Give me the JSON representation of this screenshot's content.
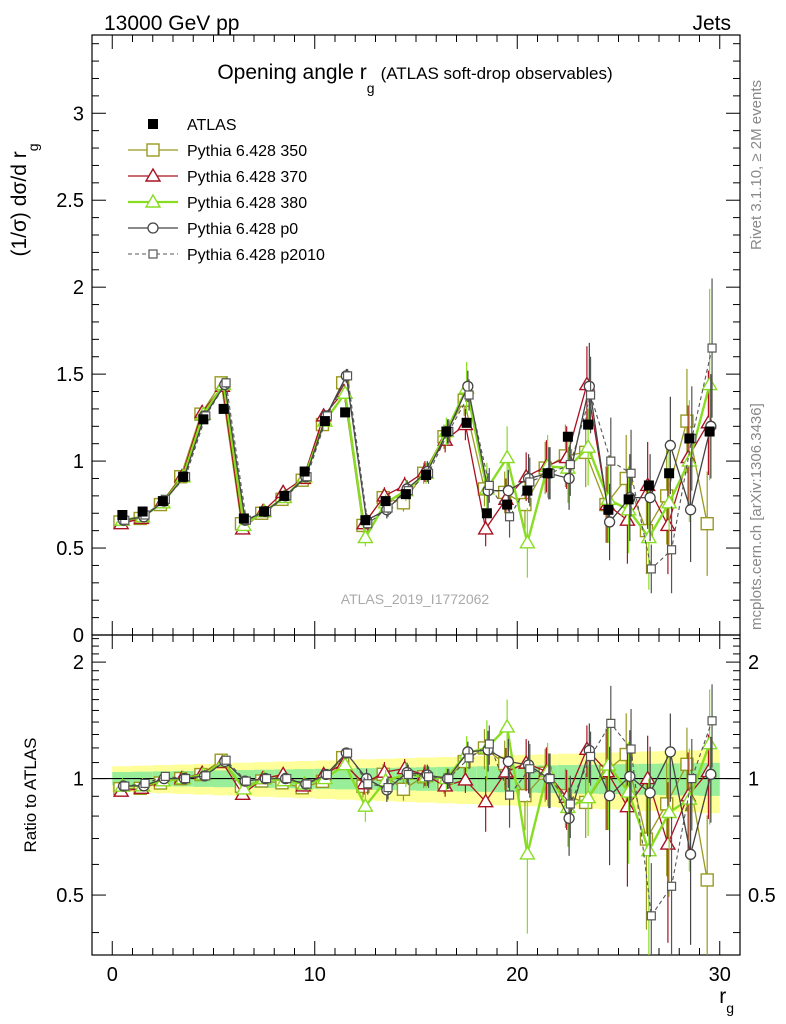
{
  "header": {
    "left": "13000 GeV pp",
    "right": "Jets"
  },
  "side": {
    "rivet": "Rivet 3.1.10, ≥ 2M events",
    "mcplots": "mcplots.cern.ch [arXiv:1306.3436]"
  },
  "chart_data": {
    "type": "scatter",
    "title": "Opening angle r",
    "title_sub": "g",
    "title_suffix": "(ATLAS soft-drop observables)",
    "ylabel": "(1/σ) dσ/d r",
    "ylabel_sub": "g",
    "xlabel": "r",
    "xlabel_sub": "g",
    "ratio_ylabel": "Ratio to ATLAS",
    "watermark": "ATLAS_2019_I1772062",
    "xlim": [
      -1,
      31
    ],
    "ylim": [
      0,
      3.45
    ],
    "ratio_ylim": [
      0.35,
      2.35
    ],
    "x_ticks": [
      0,
      10,
      20,
      30
    ],
    "y_ticks": [
      0,
      0.5,
      1,
      1.5,
      2,
      2.5,
      3
    ],
    "y_tick_labels": [
      "0",
      "0.5",
      "1",
      "1.5",
      "2",
      "2.5",
      "3"
    ],
    "ratio_ticks": [
      0.5,
      1,
      2
    ],
    "x": [
      0.5,
      1.5,
      2.5,
      3.5,
      4.5,
      5.5,
      6.5,
      7.5,
      8.5,
      9.5,
      10.5,
      11.5,
      12.5,
      13.5,
      14.5,
      15.5,
      16.5,
      17.5,
      18.5,
      19.5,
      20.5,
      21.5,
      22.5,
      23.5,
      24.5,
      25.5,
      26.5,
      27.5,
      28.5,
      29.5
    ],
    "data": {
      "name": "ATLAS",
      "values": [
        0.69,
        0.71,
        0.77,
        0.91,
        1.24,
        1.3,
        0.67,
        0.71,
        0.8,
        0.94,
        1.23,
        1.28,
        0.66,
        0.77,
        0.81,
        0.92,
        1.17,
        1.22,
        0.7,
        0.75,
        0.83,
        0.93,
        1.14,
        1.21,
        0.72,
        0.78,
        0.86,
        0.93,
        1.13,
        1.17
      ]
    },
    "series": [
      {
        "name": "Pythia 6.428 350",
        "color": "#999922",
        "marker": "square",
        "dash": false,
        "width": 1.3,
        "values": [
          0.65,
          0.67,
          0.75,
          0.91,
          1.27,
          1.45,
          0.64,
          0.7,
          0.78,
          0.89,
          1.21,
          1.45,
          0.63,
          0.79,
          0.76,
          0.93,
          1.14,
          1.35,
          0.84,
          0.82,
          0.75,
          0.96,
          1.03,
          1.05,
          0.75,
          0.9,
          0.6,
          0.8,
          1.23,
          0.64
        ],
        "err": [
          0.02,
          0.02,
          0.02,
          0.02,
          0.03,
          0.03,
          0.02,
          0.02,
          0.02,
          0.03,
          0.03,
          0.04,
          0.04,
          0.05,
          0.05,
          0.06,
          0.07,
          0.09,
          0.1,
          0.12,
          0.14,
          0.15,
          0.18,
          0.2,
          0.22,
          0.25,
          0.25,
          0.28,
          0.3,
          0.3
        ]
      },
      {
        "name": "Pythia 6.428 370",
        "color": "#aa1122",
        "marker": "triangle",
        "dash": false,
        "width": 1.3,
        "values": [
          0.64,
          0.67,
          0.76,
          0.91,
          1.28,
          1.43,
          0.61,
          0.71,
          0.82,
          0.9,
          1.26,
          1.4,
          0.64,
          0.8,
          0.86,
          0.94,
          1.12,
          1.21,
          0.61,
          0.78,
          0.91,
          0.97,
          1.02,
          1.44,
          0.75,
          0.66,
          0.86,
          0.63,
          1.02,
          1.22
        ],
        "err": [
          0.02,
          0.02,
          0.02,
          0.02,
          0.03,
          0.03,
          0.02,
          0.02,
          0.02,
          0.03,
          0.03,
          0.04,
          0.04,
          0.05,
          0.05,
          0.06,
          0.07,
          0.09,
          0.1,
          0.12,
          0.14,
          0.15,
          0.18,
          0.22,
          0.22,
          0.25,
          0.25,
          0.28,
          0.3,
          0.3
        ]
      },
      {
        "name": "Pythia 6.428 380",
        "color": "#88dd22",
        "marker": "triangle",
        "dash": false,
        "width": 2.4,
        "values": [
          0.66,
          0.68,
          0.76,
          0.91,
          1.27,
          1.44,
          0.63,
          0.71,
          0.79,
          0.91,
          1.23,
          1.39,
          0.56,
          0.76,
          0.83,
          0.93,
          1.17,
          1.42,
          0.84,
          1.02,
          0.53,
          0.97,
          0.96,
          1.08,
          0.78,
          0.72,
          0.56,
          0.76,
          1.0,
          1.44
        ],
        "err": [
          0.02,
          0.02,
          0.02,
          0.02,
          0.03,
          0.03,
          0.02,
          0.02,
          0.02,
          0.03,
          0.03,
          0.04,
          0.05,
          0.05,
          0.06,
          0.06,
          0.08,
          0.15,
          0.15,
          0.18,
          0.2,
          0.18,
          0.2,
          0.22,
          0.25,
          0.25,
          0.3,
          0.3,
          0.35,
          0.55
        ]
      },
      {
        "name": "Pythia 6.428 p0",
        "color": "#444444",
        "marker": "circle",
        "dash": false,
        "width": 1.3,
        "values": [
          0.66,
          0.68,
          0.77,
          0.91,
          1.26,
          1.44,
          0.66,
          0.71,
          0.8,
          0.91,
          1.26,
          1.49,
          0.66,
          0.72,
          0.84,
          0.94,
          1.17,
          1.43,
          0.83,
          0.83,
          0.9,
          0.93,
          0.9,
          1.43,
          0.65,
          0.79,
          0.79,
          1.09,
          0.72,
          1.2
        ],
        "err": [
          0.02,
          0.02,
          0.02,
          0.02,
          0.03,
          0.03,
          0.02,
          0.02,
          0.02,
          0.03,
          0.03,
          0.04,
          0.04,
          0.05,
          0.05,
          0.06,
          0.07,
          0.09,
          0.1,
          0.12,
          0.14,
          0.15,
          0.18,
          0.25,
          0.22,
          0.25,
          0.25,
          0.28,
          0.3,
          0.3
        ]
      },
      {
        "name": "Pythia 6.428 p2010",
        "color": "#555555",
        "marker": "square-small",
        "dash": true,
        "width": 1.1,
        "values": [
          0.66,
          0.69,
          0.78,
          0.91,
          1.26,
          1.45,
          0.66,
          0.71,
          0.8,
          0.91,
          1.26,
          1.49,
          0.64,
          0.73,
          0.83,
          0.93,
          1.17,
          1.38,
          0.86,
          0.68,
          0.88,
          0.93,
          0.98,
          1.38,
          1.0,
          0.93,
          0.38,
          0.49,
          1.13,
          1.65
        ],
        "err": [
          0.02,
          0.02,
          0.02,
          0.02,
          0.03,
          0.03,
          0.02,
          0.02,
          0.02,
          0.03,
          0.03,
          0.04,
          0.04,
          0.05,
          0.05,
          0.06,
          0.07,
          0.09,
          0.1,
          0.12,
          0.14,
          0.15,
          0.18,
          0.22,
          0.25,
          0.25,
          0.14,
          0.25,
          0.3,
          0.4
        ]
      }
    ],
    "legend_placement": "top-left",
    "grid": false
  }
}
